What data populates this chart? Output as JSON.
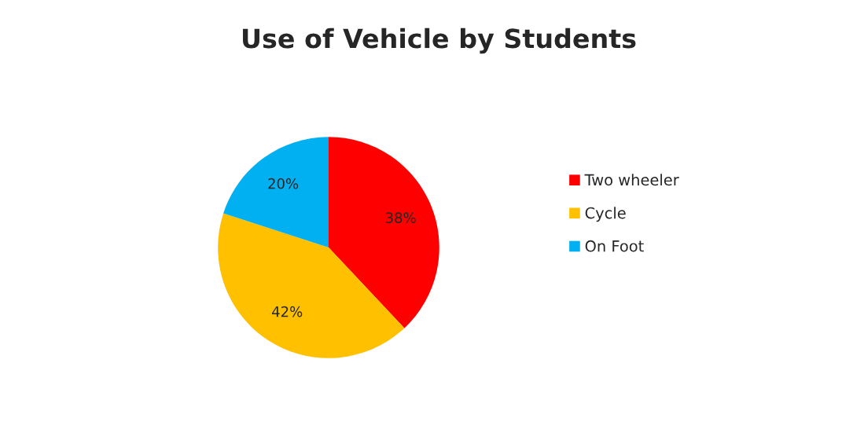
{
  "chart_data": {
    "type": "pie",
    "title": "Use of Vehicle by Students",
    "categories": [
      "Two wheeler",
      "Cycle",
      "On Foot"
    ],
    "values": [
      38,
      42,
      20
    ],
    "value_labels": [
      "38%",
      "42%",
      "20%"
    ],
    "colors": [
      "#ff0000",
      "#ffc000",
      "#00b0f0"
    ],
    "legend": "right"
  }
}
